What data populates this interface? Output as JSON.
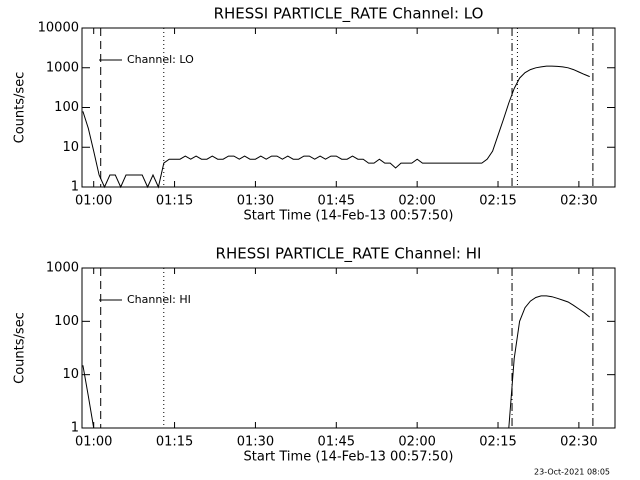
{
  "chart_data": [
    {
      "type": "line",
      "title": "RHESSI PARTICLE_RATE Channel: LO",
      "x_label": "Start Time (14-Feb-13 00:57:50)",
      "y_label": "Counts/sec",
      "xlim": [
        57.83,
        156.7
      ],
      "xticks": [
        {
          "value": 60,
          "label": "01:00"
        },
        {
          "value": 75,
          "label": "01:15"
        },
        {
          "value": 90,
          "label": "01:30"
        },
        {
          "value": 105,
          "label": "01:45"
        },
        {
          "value": 120,
          "label": "02:00"
        },
        {
          "value": 135,
          "label": "02:15"
        },
        {
          "value": 150,
          "label": "02:30"
        }
      ],
      "ylim": [
        1,
        10000
      ],
      "yticks": [
        1,
        10,
        100,
        1000,
        10000
      ],
      "log_y": true,
      "legend": "upper left",
      "events": [
        {
          "x": 61.3,
          "style": "dashed"
        },
        {
          "x": 73.0,
          "style": "dotted"
        },
        {
          "x": 137.6,
          "style": "dashdot"
        },
        {
          "x": 138.6,
          "style": "dotted"
        },
        {
          "x": 152.6,
          "style": "dashdot"
        }
      ],
      "series": [
        {
          "name": "Channel: LO",
          "color": "#000000",
          "x": [
            58,
            59,
            60,
            61,
            62,
            63,
            64,
            65,
            66,
            67,
            68,
            69,
            70,
            71,
            72,
            73,
            74,
            75,
            76,
            77,
            78,
            79,
            80,
            81,
            82,
            83,
            84,
            85,
            86,
            87,
            88,
            89,
            90,
            91,
            92,
            93,
            94,
            95,
            96,
            97,
            98,
            99,
            100,
            101,
            102,
            103,
            104,
            105,
            106,
            107,
            108,
            109,
            110,
            111,
            112,
            113,
            114,
            115,
            116,
            117,
            118,
            119,
            120,
            121,
            122,
            123,
            124,
            125,
            126,
            127,
            128,
            129,
            130,
            131,
            132,
            133,
            134,
            135,
            136,
            137,
            138,
            139,
            140,
            141,
            142,
            143,
            144,
            145,
            146,
            147,
            148,
            149,
            150,
            151,
            152
          ],
          "values": [
            80,
            30,
            8,
            2,
            1,
            2,
            2,
            1,
            2,
            2,
            2,
            2,
            1,
            2,
            1,
            4,
            5,
            5,
            5,
            6,
            5,
            6,
            5,
            5,
            6,
            5,
            5,
            6,
            6,
            5,
            6,
            5,
            5,
            6,
            5,
            6,
            6,
            5,
            6,
            5,
            5,
            6,
            6,
            5,
            6,
            5,
            6,
            6,
            5,
            5,
            6,
            5,
            5,
            4,
            4,
            5,
            4,
            4,
            3,
            4,
            4,
            4,
            5,
            4,
            4,
            4,
            4,
            4,
            4,
            4,
            4,
            4,
            4,
            4,
            4,
            5,
            8,
            20,
            50,
            130,
            300,
            550,
            750,
            900,
            1000,
            1050,
            1100,
            1100,
            1080,
            1050,
            1000,
            900,
            780,
            680,
            600
          ]
        }
      ]
    },
    {
      "type": "line",
      "title": "RHESSI PARTICLE_RATE Channel: HI",
      "x_label": "Start Time (14-Feb-13 00:57:50)",
      "y_label": "Counts/sec",
      "xlim": [
        57.83,
        156.7
      ],
      "xticks": [
        {
          "value": 60,
          "label": "01:00"
        },
        {
          "value": 75,
          "label": "01:15"
        },
        {
          "value": 90,
          "label": "01:30"
        },
        {
          "value": 105,
          "label": "01:45"
        },
        {
          "value": 120,
          "label": "02:00"
        },
        {
          "value": 135,
          "label": "02:15"
        },
        {
          "value": 150,
          "label": "02:30"
        }
      ],
      "ylim": [
        1,
        1000
      ],
      "yticks": [
        1,
        10,
        100,
        1000
      ],
      "log_y": true,
      "legend": "upper left",
      "events": [
        {
          "x": 61.3,
          "style": "dashed"
        },
        {
          "x": 73.0,
          "style": "dotted"
        },
        {
          "x": 137.6,
          "style": "dashdot"
        },
        {
          "x": 152.6,
          "style": "dashdot"
        }
      ],
      "series": [
        {
          "name": "Channel: HI",
          "color": "#000000",
          "x": [
            58,
            59,
            60,
            61,
            137,
            138,
            139,
            140,
            141,
            142,
            143,
            144,
            145,
            146,
            147,
            148,
            149,
            150,
            151,
            152
          ],
          "values": [
            15,
            4,
            1,
            null,
            1,
            20,
            100,
            180,
            240,
            280,
            300,
            300,
            290,
            270,
            250,
            230,
            200,
            170,
            145,
            120
          ]
        }
      ]
    }
  ],
  "timestamp": "23-Oct-2021 08:05"
}
